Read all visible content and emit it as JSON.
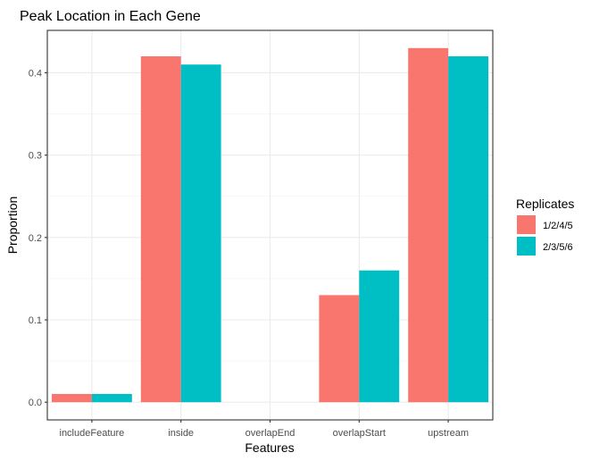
{
  "chart_data": {
    "type": "bar",
    "title": "Peak Location in Each Gene",
    "xlabel": "Features",
    "ylabel": "Proportion",
    "categories": [
      "includeFeature",
      "inside",
      "overlapEnd",
      "overlapStart",
      "upstream"
    ],
    "series": [
      {
        "name": "1/2/4/5",
        "color": "#F8766D",
        "values": [
          0.01,
          0.42,
          0.0,
          0.13,
          0.43
        ]
      },
      {
        "name": "2/3/5/6",
        "color": "#00BFC4",
        "values": [
          0.01,
          0.41,
          0.0,
          0.16,
          0.42
        ]
      }
    ],
    "ylim": [
      -0.0215,
      0.4515
    ],
    "yticks": [
      0.0,
      0.1,
      0.2,
      0.3,
      0.4
    ],
    "ytick_labels": [
      "0.0",
      "0.1",
      "0.2",
      "0.3",
      "0.4"
    ],
    "grid": true,
    "legend": {
      "title": "Replicates",
      "position": "right"
    }
  }
}
